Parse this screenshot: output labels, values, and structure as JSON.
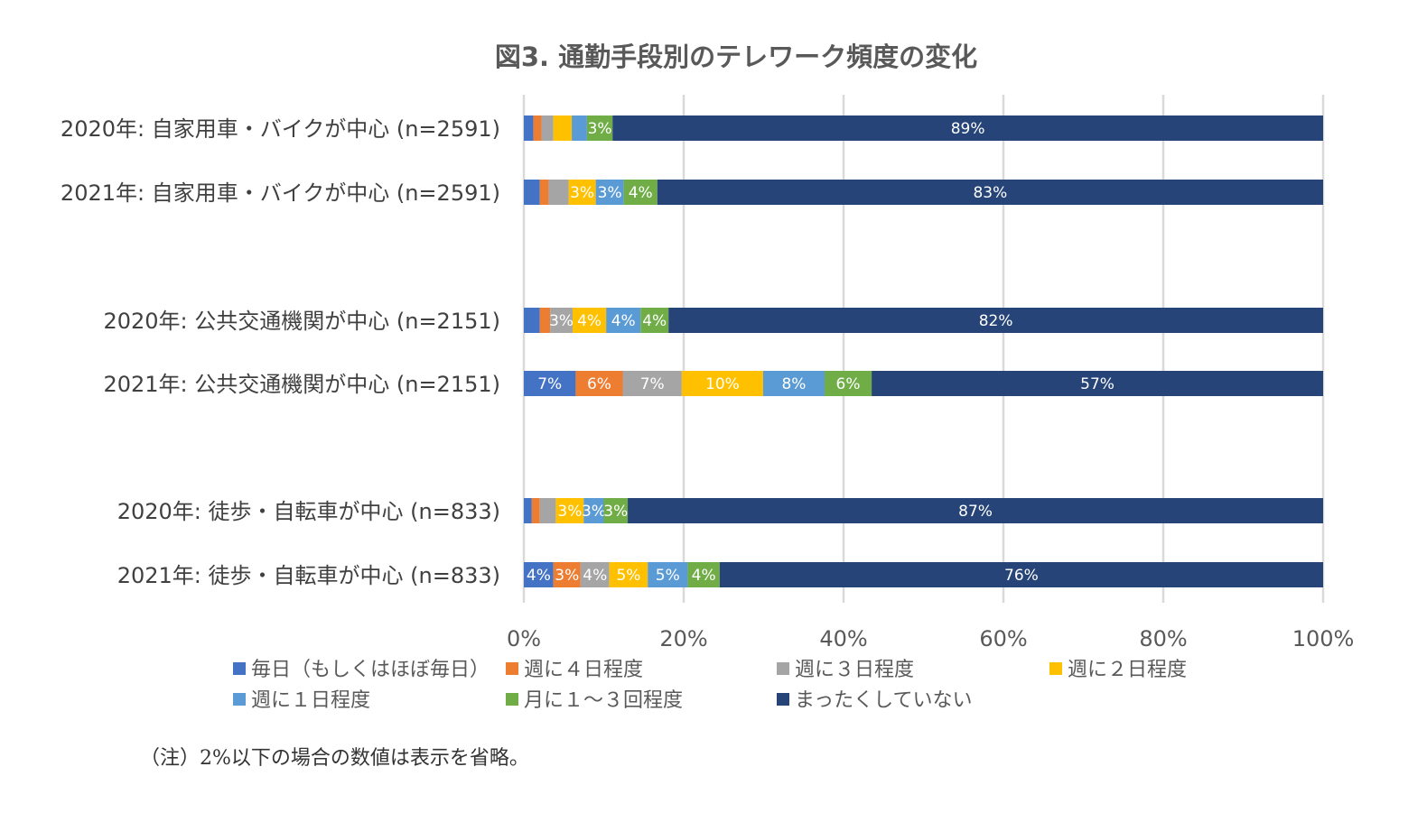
{
  "chart_data": {
    "type": "bar",
    "orientation": "horizontal",
    "stacked": true,
    "percent_stacked": true,
    "title": "図3. 通勤手段別のテレワーク頻度の変化",
    "categories": [
      "2020年: 自家用車・バイクが中心 (n=2591)",
      "2021年: 自家用車・バイクが中心 (n=2591)",
      "2020年: 公共交通機関が中心 (n=2151)",
      "2021年: 公共交通機関が中心 (n=2151)",
      "2020年: 徒歩・自転車が中心 (n=833)",
      "2021年: 徒歩・自転車が中心 (n=833)"
    ],
    "series": [
      {
        "name": "毎日（もしくはほぼ毎日）",
        "color": "#4472c4",
        "values": [
          1.2,
          2.0,
          2.0,
          6.5,
          1.0,
          3.7
        ]
      },
      {
        "name": "週に４日程度",
        "color": "#ed7d31",
        "values": [
          1.0,
          1.1,
          1.3,
          5.9,
          1.0,
          3.4
        ]
      },
      {
        "name": "週に３日程度",
        "color": "#a5a5a5",
        "values": [
          1.5,
          2.5,
          2.8,
          7.4,
          2.0,
          3.6
        ]
      },
      {
        "name": "週に２日程度",
        "color": "#ffc000",
        "values": [
          2.3,
          3.4,
          4.2,
          10.2,
          3.5,
          4.8
        ]
      },
      {
        "name": "週に１日程度",
        "color": "#5b9bd5",
        "values": [
          1.9,
          3.5,
          4.3,
          7.7,
          2.5,
          5.0
        ]
      },
      {
        "name": "月に１～３回程度",
        "color": "#70ad47",
        "values": [
          3.2,
          4.2,
          3.5,
          5.9,
          3.0,
          4.0
        ]
      },
      {
        "name": "まったくしていない",
        "color": "#264478",
        "values": [
          88.9,
          83.3,
          81.9,
          56.6,
          87.0,
          75.5
        ]
      }
    ],
    "data_labels": [
      [
        "",
        "",
        "",
        "",
        "",
        "3%",
        "89%"
      ],
      [
        "",
        "",
        "",
        "3%",
        "3%",
        "4%",
        "83%"
      ],
      [
        "",
        "",
        "3%",
        "4%",
        "4%",
        "4%",
        "82%"
      ],
      [
        "7%",
        "6%",
        "7%",
        "10%",
        "8%",
        "6%",
        "57%"
      ],
      [
        "",
        "",
        "",
        "3%",
        "3%",
        "3%",
        "87%"
      ],
      [
        "4%",
        "3%",
        "4%",
        "5%",
        "5%",
        "4%",
        "76%"
      ]
    ],
    "xlim": [
      0,
      100
    ],
    "x_ticks": [
      "0%",
      "20%",
      "40%",
      "60%",
      "80%",
      "100%"
    ],
    "grid": true,
    "legend_position": "bottom"
  },
  "note": "（注）2%以下の場合の数値は表示を省略。"
}
